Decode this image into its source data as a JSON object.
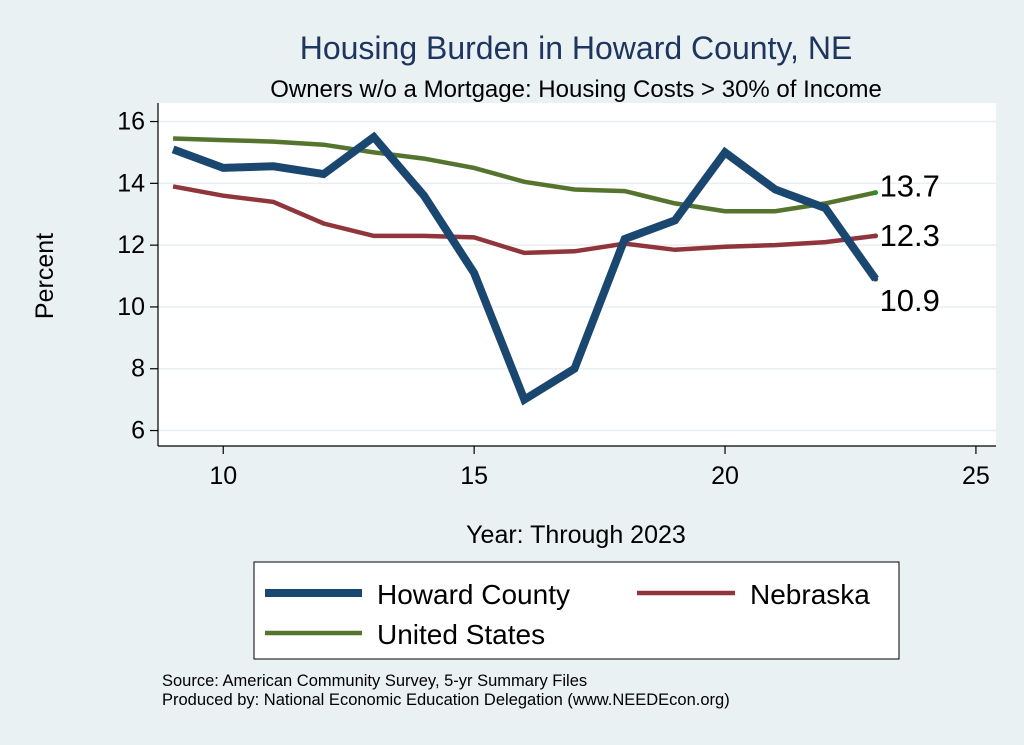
{
  "chart_data": {
    "type": "line",
    "title": "Housing Burden in Howard County, NE",
    "subtitle": "Owners w/o a Mortgage: Housing Costs > 30% of Income",
    "xlabel": "Year: Through 2023",
    "ylabel": "Percent",
    "xlim": [
      8.7,
      25.4
    ],
    "ylim": [
      5.5,
      16.6
    ],
    "xticks": [
      10,
      15,
      20,
      25
    ],
    "yticks": [
      6,
      8,
      10,
      12,
      14,
      16
    ],
    "grid": true,
    "x": [
      9,
      10,
      11,
      12,
      13,
      14,
      15,
      16,
      17,
      18,
      19,
      20,
      21,
      22,
      23
    ],
    "series": [
      {
        "name": "Howard County",
        "color": "#1a476f",
        "values": [
          15.1,
          14.5,
          14.55,
          14.3,
          15.5,
          13.6,
          11.1,
          7.0,
          8.0,
          12.2,
          12.8,
          15.0,
          13.8,
          13.2,
          10.9
        ],
        "end_label": "10.9"
      },
      {
        "name": "Nebraska",
        "color": "#90353b",
        "values": [
          13.9,
          13.6,
          13.4,
          12.7,
          12.3,
          12.3,
          12.25,
          11.75,
          11.8,
          12.05,
          11.85,
          11.95,
          12.0,
          12.1,
          12.3
        ],
        "end_label": "12.3"
      },
      {
        "name": "United States",
        "color": "#55752f",
        "values": [
          15.45,
          15.4,
          15.35,
          15.25,
          15.0,
          14.8,
          14.5,
          14.05,
          13.8,
          13.75,
          13.35,
          13.1,
          13.1,
          13.35,
          13.7
        ],
        "end_label": "13.7"
      }
    ],
    "legend": {
      "position": "bottom",
      "columns": 2,
      "entries": [
        "Howard County",
        "Nebraska",
        "United States"
      ]
    }
  },
  "footer": {
    "source": "Source: American Community Survey, 5-yr Summary Files",
    "produced": "Produced by: National Economic Education Delegation (www.NEEDEcon.org)"
  }
}
